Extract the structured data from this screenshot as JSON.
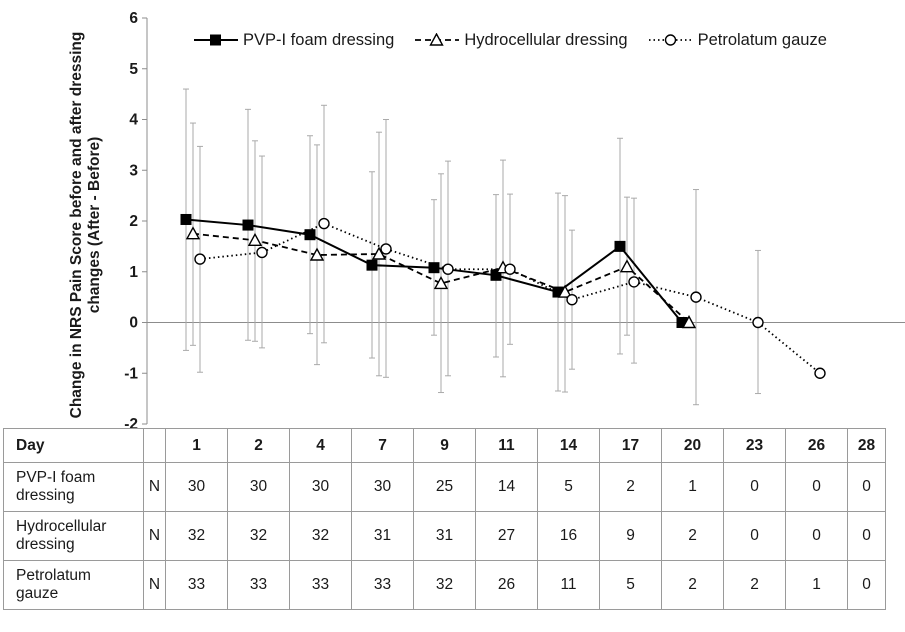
{
  "chart_data": {
    "type": "line",
    "ylabel": "Change in NRS Pain Score before and after dressing changes (After - Before)",
    "ylim": [
      -2,
      6
    ],
    "yticks": [
      "-2",
      "-1",
      "0",
      "1",
      "2",
      "3",
      "4",
      "5",
      "6"
    ],
    "x_days": [
      1,
      2,
      4,
      7,
      9,
      11,
      14,
      17,
      20,
      23,
      26,
      28
    ],
    "legend_position": "top",
    "series": [
      {
        "name": "PVP-I foam dressing",
        "marker": "filled-square",
        "line": "solid",
        "color": "#000000",
        "x": [
          1,
          2,
          4,
          7,
          9,
          11,
          14,
          17,
          20
        ],
        "values": [
          2.03,
          1.92,
          1.73,
          1.13,
          1.08,
          0.93,
          0.6,
          1.5,
          0.0
        ],
        "err_low": [
          -0.55,
          -0.35,
          -0.22,
          -0.7,
          -0.25,
          -0.68,
          -1.35,
          -0.62,
          0.0
        ],
        "err_high": [
          4.6,
          4.2,
          3.68,
          2.97,
          2.42,
          2.52,
          2.55,
          3.63,
          0.0
        ]
      },
      {
        "name": "Hydrocellular dressing",
        "marker": "open-triangle",
        "line": "dashed",
        "color": "#000000",
        "x": [
          1,
          2,
          4,
          7,
          9,
          11,
          14,
          17,
          20
        ],
        "values": [
          1.75,
          1.62,
          1.33,
          1.35,
          0.77,
          1.08,
          0.6,
          1.1,
          0.0
        ],
        "err_low": [
          -0.45,
          -0.37,
          -0.83,
          -1.05,
          -1.38,
          -1.07,
          -1.37,
          -0.25,
          0.0
        ],
        "err_high": [
          3.93,
          3.58,
          3.5,
          3.75,
          2.93,
          3.2,
          2.5,
          2.47,
          0.0
        ]
      },
      {
        "name": "Petrolatum gauze",
        "marker": "open-circle",
        "line": "dotted",
        "color": "#000000",
        "x": [
          1,
          2,
          4,
          7,
          9,
          11,
          14,
          17,
          20,
          23,
          26
        ],
        "values": [
          1.25,
          1.38,
          1.95,
          1.45,
          1.05,
          1.05,
          0.45,
          0.8,
          0.5,
          0.0,
          -1.0
        ],
        "err_low": [
          -0.98,
          -0.5,
          -0.4,
          -1.08,
          -1.05,
          -0.43,
          -0.92,
          -0.8,
          -1.62,
          -1.4,
          -1.0
        ],
        "err_high": [
          3.47,
          3.28,
          4.28,
          4.0,
          3.18,
          2.53,
          1.82,
          2.45,
          2.62,
          1.42,
          -1.0
        ]
      }
    ],
    "errorbar_color": "#aaaaaa",
    "grid": false
  },
  "table": {
    "header": {
      "label": "Day",
      "days": [
        "1",
        "2",
        "4",
        "7",
        "9",
        "11",
        "14",
        "17",
        "20",
        "23",
        "26",
        "28"
      ]
    },
    "rows": [
      {
        "label_line1": "PVP-I foam",
        "label_line2": "dressing",
        "n": "N",
        "values": [
          "30",
          "30",
          "30",
          "30",
          "25",
          "14",
          "5",
          "2",
          "1",
          "0",
          "0",
          "0"
        ]
      },
      {
        "label_line1": "Hydrocellular",
        "label_line2": "dressing",
        "n": "N",
        "values": [
          "32",
          "32",
          "32",
          "31",
          "31",
          "27",
          "16",
          "9",
          "2",
          "0",
          "0",
          "0"
        ]
      },
      {
        "label_line1": "Petrolatum",
        "label_line2": "gauze",
        "n": "N",
        "values": [
          "33",
          "33",
          "33",
          "33",
          "32",
          "26",
          "11",
          "5",
          "2",
          "2",
          "1",
          "0"
        ]
      }
    ]
  }
}
